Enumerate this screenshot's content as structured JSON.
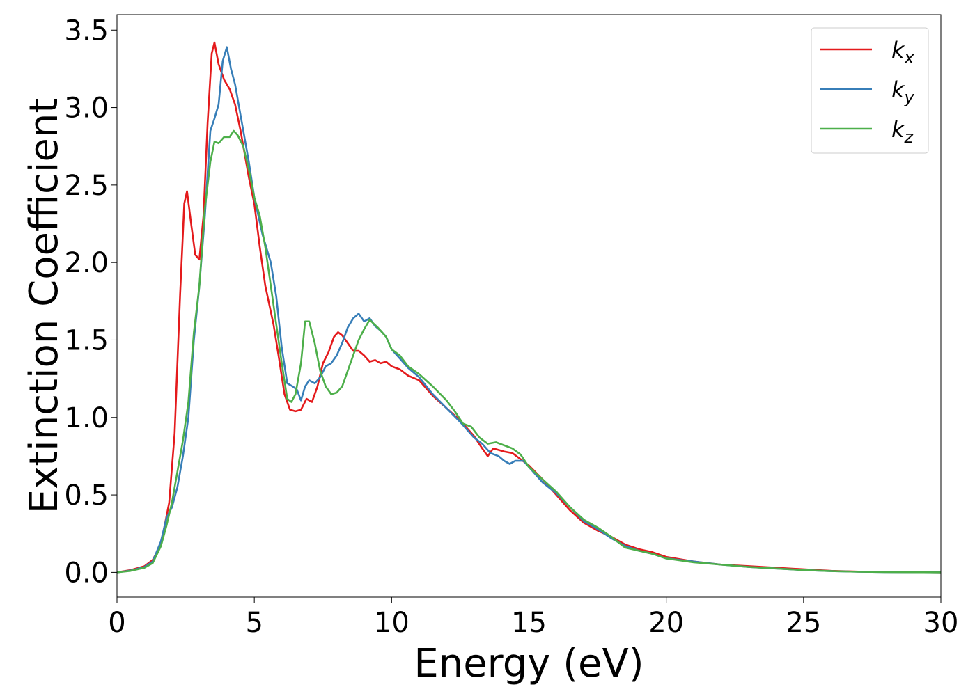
{
  "chart_data": {
    "type": "line",
    "title": "",
    "xlabel": "Energy (eV)",
    "ylabel": "Extinction Coefficient",
    "xlim": [
      0,
      30
    ],
    "ylim": [
      -0.16,
      3.6
    ],
    "xticks": [
      0,
      5,
      10,
      15,
      20,
      25,
      30
    ],
    "yticks": [
      0.0,
      0.5,
      1.0,
      1.5,
      2.0,
      2.5,
      3.0,
      3.5
    ],
    "xtick_labels": [
      "0",
      "5",
      "10",
      "15",
      "20",
      "25",
      "30"
    ],
    "ytick_labels": [
      "0.0",
      "0.5",
      "1.0",
      "1.5",
      "2.0",
      "2.5",
      "3.0",
      "3.5"
    ],
    "grid": false,
    "legend_position": "top-right",
    "series": [
      {
        "name": "k_x",
        "label_main": "k",
        "label_sub": "x",
        "color": "#e41a1c",
        "points": [
          [
            0,
            0
          ],
          [
            0.5,
            0.015
          ],
          [
            1,
            0.04
          ],
          [
            1.3,
            0.08
          ],
          [
            1.6,
            0.18
          ],
          [
            1.9,
            0.45
          ],
          [
            2.1,
            0.9
          ],
          [
            2.3,
            1.8
          ],
          [
            2.45,
            2.38
          ],
          [
            2.55,
            2.46
          ],
          [
            2.7,
            2.25
          ],
          [
            2.85,
            2.05
          ],
          [
            3.0,
            2.02
          ],
          [
            3.15,
            2.3
          ],
          [
            3.3,
            2.9
          ],
          [
            3.45,
            3.35
          ],
          [
            3.55,
            3.42
          ],
          [
            3.7,
            3.28
          ],
          [
            3.9,
            3.18
          ],
          [
            4.1,
            3.12
          ],
          [
            4.3,
            3.02
          ],
          [
            4.5,
            2.85
          ],
          [
            4.8,
            2.55
          ],
          [
            5.0,
            2.38
          ],
          [
            5.2,
            2.1
          ],
          [
            5.4,
            1.85
          ],
          [
            5.7,
            1.6
          ],
          [
            5.9,
            1.38
          ],
          [
            6.1,
            1.15
          ],
          [
            6.3,
            1.05
          ],
          [
            6.5,
            1.04
          ],
          [
            6.7,
            1.05
          ],
          [
            6.9,
            1.12
          ],
          [
            7.1,
            1.1
          ],
          [
            7.3,
            1.2
          ],
          [
            7.5,
            1.35
          ],
          [
            7.7,
            1.42
          ],
          [
            7.9,
            1.52
          ],
          [
            8.05,
            1.55
          ],
          [
            8.2,
            1.53
          ],
          [
            8.4,
            1.48
          ],
          [
            8.6,
            1.43
          ],
          [
            8.8,
            1.43
          ],
          [
            9.0,
            1.4
          ],
          [
            9.2,
            1.36
          ],
          [
            9.4,
            1.37
          ],
          [
            9.6,
            1.35
          ],
          [
            9.8,
            1.36
          ],
          [
            10.0,
            1.33
          ],
          [
            10.3,
            1.31
          ],
          [
            10.6,
            1.27
          ],
          [
            11.0,
            1.24
          ],
          [
            11.5,
            1.14
          ],
          [
            12.0,
            1.06
          ],
          [
            12.5,
            0.98
          ],
          [
            13.0,
            0.88
          ],
          [
            13.3,
            0.8
          ],
          [
            13.5,
            0.75
          ],
          [
            13.7,
            0.8
          ],
          [
            13.9,
            0.79
          ],
          [
            14.1,
            0.78
          ],
          [
            14.4,
            0.77
          ],
          [
            14.7,
            0.73
          ],
          [
            15.0,
            0.69
          ],
          [
            15.5,
            0.6
          ],
          [
            16.0,
            0.5
          ],
          [
            16.5,
            0.4
          ],
          [
            17.0,
            0.32
          ],
          [
            17.5,
            0.27
          ],
          [
            18.0,
            0.23
          ],
          [
            18.5,
            0.18
          ],
          [
            19.0,
            0.15
          ],
          [
            19.5,
            0.13
          ],
          [
            20.0,
            0.1
          ],
          [
            21,
            0.07
          ],
          [
            22,
            0.05
          ],
          [
            23,
            0.04
          ],
          [
            24,
            0.03
          ],
          [
            25,
            0.02
          ],
          [
            26,
            0.01
          ],
          [
            27,
            0.005
          ],
          [
            28,
            0.003
          ],
          [
            30,
            0.0
          ]
        ]
      },
      {
        "name": "k_y",
        "label_main": "k",
        "label_sub": "y",
        "color": "#377eb8",
        "points": [
          [
            0,
            0
          ],
          [
            0.5,
            0.012
          ],
          [
            1,
            0.035
          ],
          [
            1.3,
            0.07
          ],
          [
            1.6,
            0.2
          ],
          [
            1.8,
            0.35
          ],
          [
            2.0,
            0.42
          ],
          [
            2.2,
            0.55
          ],
          [
            2.4,
            0.75
          ],
          [
            2.6,
            1.0
          ],
          [
            2.8,
            1.5
          ],
          [
            3.0,
            1.85
          ],
          [
            3.2,
            2.3
          ],
          [
            3.4,
            2.85
          ],
          [
            3.55,
            2.93
          ],
          [
            3.7,
            3.02
          ],
          [
            3.85,
            3.3
          ],
          [
            4.0,
            3.39
          ],
          [
            4.15,
            3.25
          ],
          [
            4.3,
            3.15
          ],
          [
            4.5,
            2.95
          ],
          [
            4.8,
            2.65
          ],
          [
            5.0,
            2.42
          ],
          [
            5.3,
            2.18
          ],
          [
            5.6,
            2.0
          ],
          [
            5.8,
            1.78
          ],
          [
            6.0,
            1.45
          ],
          [
            6.2,
            1.22
          ],
          [
            6.4,
            1.2
          ],
          [
            6.55,
            1.18
          ],
          [
            6.7,
            1.11
          ],
          [
            6.85,
            1.2
          ],
          [
            7.0,
            1.24
          ],
          [
            7.2,
            1.22
          ],
          [
            7.4,
            1.26
          ],
          [
            7.6,
            1.33
          ],
          [
            7.8,
            1.35
          ],
          [
            8.0,
            1.4
          ],
          [
            8.2,
            1.48
          ],
          [
            8.4,
            1.58
          ],
          [
            8.6,
            1.64
          ],
          [
            8.8,
            1.67
          ],
          [
            9.0,
            1.62
          ],
          [
            9.2,
            1.64
          ],
          [
            9.4,
            1.59
          ],
          [
            9.6,
            1.56
          ],
          [
            9.8,
            1.52
          ],
          [
            10.0,
            1.44
          ],
          [
            10.3,
            1.38
          ],
          [
            10.6,
            1.32
          ],
          [
            11.0,
            1.26
          ],
          [
            11.5,
            1.15
          ],
          [
            12.0,
            1.06
          ],
          [
            12.5,
            0.97
          ],
          [
            13.0,
            0.87
          ],
          [
            13.3,
            0.83
          ],
          [
            13.6,
            0.77
          ],
          [
            13.9,
            0.75
          ],
          [
            14.1,
            0.72
          ],
          [
            14.3,
            0.7
          ],
          [
            14.5,
            0.72
          ],
          [
            14.8,
            0.72
          ],
          [
            15.0,
            0.68
          ],
          [
            15.5,
            0.58
          ],
          [
            16.0,
            0.51
          ],
          [
            16.5,
            0.42
          ],
          [
            17.0,
            0.33
          ],
          [
            17.5,
            0.28
          ],
          [
            18.0,
            0.22
          ],
          [
            18.5,
            0.17
          ],
          [
            19.0,
            0.14
          ],
          [
            19.5,
            0.12
          ],
          [
            20.0,
            0.09
          ],
          [
            21,
            0.07
          ],
          [
            22,
            0.05
          ],
          [
            23,
            0.035
          ],
          [
            24,
            0.025
          ],
          [
            25,
            0.015
          ],
          [
            26,
            0.008
          ],
          [
            27,
            0.004
          ],
          [
            28,
            0.002
          ],
          [
            30,
            0.0
          ]
        ]
      },
      {
        "name": "k_z",
        "label_main": "k",
        "label_sub": "z",
        "color": "#4daf4a",
        "points": [
          [
            0,
            0
          ],
          [
            0.5,
            0.01
          ],
          [
            1,
            0.03
          ],
          [
            1.3,
            0.06
          ],
          [
            1.6,
            0.17
          ],
          [
            1.8,
            0.3
          ],
          [
            2.0,
            0.45
          ],
          [
            2.2,
            0.65
          ],
          [
            2.4,
            0.85
          ],
          [
            2.6,
            1.1
          ],
          [
            2.8,
            1.55
          ],
          [
            3.0,
            1.85
          ],
          [
            3.2,
            2.35
          ],
          [
            3.4,
            2.65
          ],
          [
            3.55,
            2.78
          ],
          [
            3.7,
            2.77
          ],
          [
            3.9,
            2.81
          ],
          [
            4.1,
            2.81
          ],
          [
            4.25,
            2.85
          ],
          [
            4.4,
            2.82
          ],
          [
            4.6,
            2.75
          ],
          [
            4.8,
            2.6
          ],
          [
            5.0,
            2.42
          ],
          [
            5.2,
            2.3
          ],
          [
            5.4,
            2.1
          ],
          [
            5.6,
            1.85
          ],
          [
            5.8,
            1.6
          ],
          [
            6.0,
            1.35
          ],
          [
            6.2,
            1.12
          ],
          [
            6.35,
            1.1
          ],
          [
            6.5,
            1.15
          ],
          [
            6.7,
            1.35
          ],
          [
            6.85,
            1.62
          ],
          [
            7.0,
            1.62
          ],
          [
            7.2,
            1.48
          ],
          [
            7.4,
            1.3
          ],
          [
            7.6,
            1.2
          ],
          [
            7.8,
            1.15
          ],
          [
            8.0,
            1.16
          ],
          [
            8.2,
            1.2
          ],
          [
            8.5,
            1.35
          ],
          [
            8.8,
            1.5
          ],
          [
            9.0,
            1.57
          ],
          [
            9.2,
            1.63
          ],
          [
            9.5,
            1.58
          ],
          [
            9.8,
            1.52
          ],
          [
            10.0,
            1.44
          ],
          [
            10.3,
            1.4
          ],
          [
            10.6,
            1.33
          ],
          [
            11.0,
            1.28
          ],
          [
            11.5,
            1.2
          ],
          [
            12.0,
            1.11
          ],
          [
            12.3,
            1.04
          ],
          [
            12.6,
            0.96
          ],
          [
            12.9,
            0.94
          ],
          [
            13.2,
            0.87
          ],
          [
            13.5,
            0.83
          ],
          [
            13.8,
            0.84
          ],
          [
            14.1,
            0.82
          ],
          [
            14.4,
            0.8
          ],
          [
            14.7,
            0.76
          ],
          [
            15.0,
            0.68
          ],
          [
            15.5,
            0.6
          ],
          [
            16.0,
            0.52
          ],
          [
            16.5,
            0.42
          ],
          [
            17.0,
            0.34
          ],
          [
            17.5,
            0.29
          ],
          [
            18.0,
            0.23
          ],
          [
            18.5,
            0.16
          ],
          [
            19.0,
            0.14
          ],
          [
            19.5,
            0.12
          ],
          [
            20.0,
            0.09
          ],
          [
            21,
            0.065
          ],
          [
            22,
            0.05
          ],
          [
            23,
            0.035
          ],
          [
            24,
            0.025
          ],
          [
            25,
            0.015
          ],
          [
            26,
            0.008
          ],
          [
            27,
            0.004
          ],
          [
            28,
            0.002
          ],
          [
            30,
            0.0
          ]
        ]
      }
    ]
  }
}
